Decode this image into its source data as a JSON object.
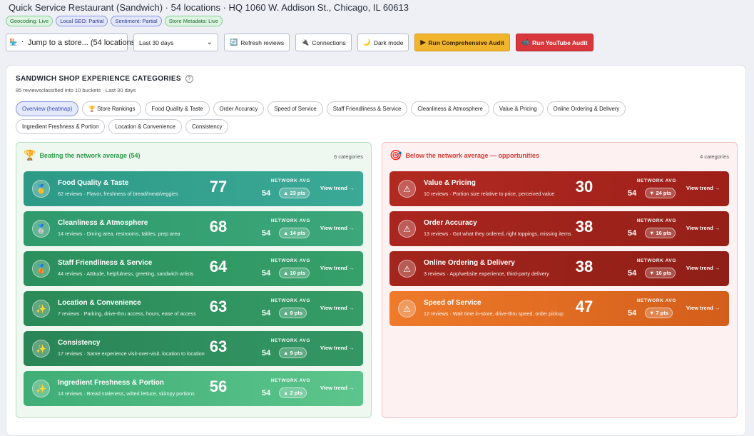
{
  "header": {
    "title": "Quick Service Restaurant (Sandwich) · 54 locations · HQ 1060 W. Addison St., Chicago, IL 60613",
    "chips": [
      {
        "label": "Geocoding: Live",
        "kind": "live"
      },
      {
        "label": "Local SEO: Partial",
        "kind": "partial"
      },
      {
        "label": "Sentiment: Partial",
        "kind": "partial"
      },
      {
        "label": "Store Metadata: Live",
        "kind": "live"
      }
    ]
  },
  "controls": {
    "jump_label": "Jump to a store... (54 locations)",
    "range_value": "Last 30 days",
    "refresh_label": "Refresh reviews",
    "connections_label": "Connections",
    "dark_mode_label": "Dark mode",
    "audit_label": "Run Comprehensive Audit",
    "youtube_label": "Run YouTube Audit"
  },
  "panel": {
    "title": "SANDWICH SHOP EXPERIENCE CATEGORIES",
    "help": "?",
    "subtitle": "85 reviewsclassified into 10 buckets · Last 30 days",
    "tabs": [
      "Overview (heatmap)",
      "🏆 Store Rankings",
      "Food Quality & Taste",
      "Order Accuracy",
      "Speed of Service",
      "Staff Friendliness & Service",
      "Cleanliness & Atmosphere",
      "Value & Pricing",
      "Online Ordering & Delivery",
      "Ingredient Freshness & Portion",
      "Location & Convenience",
      "Consistency"
    ]
  },
  "good": {
    "heading": "Beating the network average (54)",
    "count": "6 categories",
    "icon": "trophy-icon",
    "cards": [
      {
        "badge": "🥇",
        "icon": "gold-medal-icon",
        "name": "Food Quality & Taste",
        "desc": "62 reviews · Flavor, freshness of bread/meat/veggies",
        "score": "77",
        "net_label": "NETWORK AVG",
        "net": "54",
        "delta": "▲ 23 pts",
        "trend": "View trend →"
      },
      {
        "badge": "🥈",
        "icon": "silver-medal-icon",
        "name": "Cleanliness & Atmosphere",
        "desc": "14 reviews · Dining area, restrooms, tables, prep area",
        "score": "68",
        "net_label": "NETWORK AVG",
        "net": "54",
        "delta": "▲ 14 pts",
        "trend": "View trend →"
      },
      {
        "badge": "🥉",
        "icon": "bronze-medal-icon",
        "name": "Staff Friendliness & Service",
        "desc": "44 reviews · Attitude, helpfulness, greeting, sandwich artists",
        "score": "64",
        "net_label": "NETWORK AVG",
        "net": "54",
        "delta": "▲ 10 pts",
        "trend": "View trend →"
      },
      {
        "badge": "✨",
        "icon": "sparkles-icon",
        "name": "Location & Convenience",
        "desc": "7 reviews · Parking, drive-thru access, hours, ease of access",
        "score": "63",
        "net_label": "NETWORK AVG",
        "net": "54",
        "delta": "▲ 9 pts",
        "trend": "View trend →"
      },
      {
        "badge": "✨",
        "icon": "sparkles-icon",
        "name": "Consistency",
        "desc": "17 reviews · Same experience visit-over-visit, location to location",
        "score": "63",
        "net_label": "NETWORK AVG",
        "net": "54",
        "delta": "▲ 9 pts",
        "trend": "View trend →"
      },
      {
        "badge": "✨",
        "icon": "sparkles-icon",
        "name": "Ingredient Freshness & Portion",
        "desc": "14 reviews · Bread staleness, wilted lettuce, skimpy portions",
        "score": "56",
        "net_label": "NETWORK AVG",
        "net": "54",
        "delta": "▲ 2 pts",
        "trend": "View trend →"
      }
    ]
  },
  "bad": {
    "heading": "Below the network average — opportunities",
    "count": "4 categories",
    "icon": "target-icon",
    "cards": [
      {
        "badge": "⚠",
        "icon": "warning-icon",
        "name": "Value & Pricing",
        "desc": "10 reviews · Portion size relative to price, perceived value",
        "score": "30",
        "net_label": "NETWORK AVG",
        "net": "54",
        "delta": "▼ 24 pts",
        "trend": "View trend →"
      },
      {
        "badge": "⚠",
        "icon": "warning-icon",
        "name": "Order Accuracy",
        "desc": "13 reviews · Got what they ordered, right toppings, missing items",
        "score": "38",
        "net_label": "NETWORK AVG",
        "net": "54",
        "delta": "▼ 16 pts",
        "trend": "View trend →"
      },
      {
        "badge": "⚠",
        "icon": "warning-icon",
        "name": "Online Ordering & Delivery",
        "desc": "3 reviews · App/website experience, third-party delivery",
        "score": "38",
        "net_label": "NETWORK AVG",
        "net": "54",
        "delta": "▼ 16 pts",
        "trend": "View trend →"
      },
      {
        "badge": "⚠",
        "icon": "warning-icon",
        "name": "Speed of Service",
        "desc": "12 reviews · Wait time in-store, drive-thru speed, order pickup",
        "score": "47",
        "net_label": "NETWORK AVG",
        "net": "54",
        "delta": "▼ 7 pts",
        "trend": "View trend →"
      }
    ]
  }
}
